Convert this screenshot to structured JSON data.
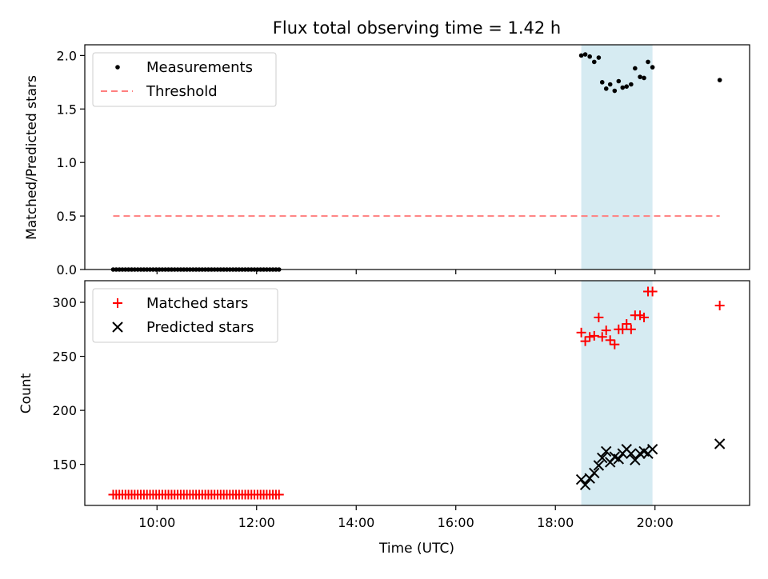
{
  "chart_data": {
    "title": "Flux total observing time = 1.42 h",
    "xlabel": "Time (UTC)",
    "x_unit": "hours UTC",
    "xlim": [
      8.55,
      21.9
    ],
    "xticks": [
      10,
      12,
      14,
      16,
      18,
      20
    ],
    "xtick_labels": [
      "10:00",
      "12:00",
      "14:00",
      "16:00",
      "18:00",
      "20:00"
    ],
    "highlight_span": {
      "x_start": 18.52,
      "x_end": 19.95,
      "color": "#ADD8E6"
    },
    "panels": [
      {
        "type": "scatter",
        "ylabel": "Matched/Predicted stars",
        "ylim": [
          0,
          2.1
        ],
        "yticks": [
          0.0,
          0.5,
          1.0,
          1.5,
          2.0
        ],
        "ytick_labels": [
          "0.0",
          "0.5",
          "1.0",
          "1.5",
          "2.0"
        ],
        "legend_position": "upper left",
        "series": [
          {
            "name": "Measurements",
            "marker": "dot",
            "color": "#000000",
            "x_range": [
              9.12,
              12.45
            ],
            "x_count": 55,
            "y_constant": 0.0,
            "points": [
              [
                18.52,
                2.0
              ],
              [
                18.6,
                2.01
              ],
              [
                18.69,
                1.99
              ],
              [
                18.78,
                1.94
              ],
              [
                18.87,
                1.98
              ],
              [
                18.94,
                1.75
              ],
              [
                19.02,
                1.69
              ],
              [
                19.1,
                1.73
              ],
              [
                19.19,
                1.67
              ],
              [
                19.27,
                1.76
              ],
              [
                19.35,
                1.7
              ],
              [
                19.43,
                1.71
              ],
              [
                19.52,
                1.73
              ],
              [
                19.6,
                1.88
              ],
              [
                19.7,
                1.8
              ],
              [
                19.78,
                1.79
              ],
              [
                19.86,
                1.94
              ],
              [
                19.95,
                1.89
              ],
              [
                21.3,
                1.77
              ]
            ]
          },
          {
            "name": "Threshold",
            "type": "line",
            "dash": "dashed",
            "color": "#FF7F7F",
            "x": [
              9.12,
              21.3
            ],
            "y": [
              0.5,
              0.5
            ]
          }
        ]
      },
      {
        "type": "scatter",
        "ylabel": "Count",
        "ylim": [
          112,
          320
        ],
        "yticks": [
          150,
          200,
          250,
          300
        ],
        "ytick_labels": [
          "150",
          "200",
          "250",
          "300"
        ],
        "legend_position": "upper left",
        "series": [
          {
            "name": "Matched stars",
            "marker": "plus",
            "color": "#FF0000",
            "x_range": [
              9.12,
              12.45
            ],
            "x_count": 55,
            "y_constant": 122,
            "points": [
              [
                18.52,
                272
              ],
              [
                18.6,
                264
              ],
              [
                18.69,
                268
              ],
              [
                18.78,
                269
              ],
              [
                18.87,
                286
              ],
              [
                18.94,
                268
              ],
              [
                19.02,
                274
              ],
              [
                19.1,
                265
              ],
              [
                19.19,
                261
              ],
              [
                19.27,
                275
              ],
              [
                19.35,
                275
              ],
              [
                19.43,
                280
              ],
              [
                19.52,
                275
              ],
              [
                19.6,
                288
              ],
              [
                19.7,
                288
              ],
              [
                19.78,
                286
              ],
              [
                19.86,
                310
              ],
              [
                19.95,
                310
              ],
              [
                21.3,
                297
              ]
            ]
          },
          {
            "name": "Predicted stars",
            "marker": "x",
            "color": "#000000",
            "points": [
              [
                18.52,
                136
              ],
              [
                18.6,
                131
              ],
              [
                18.69,
                137
              ],
              [
                18.78,
                142
              ],
              [
                18.87,
                149
              ],
              [
                18.94,
                156
              ],
              [
                19.02,
                162
              ],
              [
                19.1,
                152
              ],
              [
                19.19,
                157
              ],
              [
                19.27,
                155
              ],
              [
                19.35,
                160
              ],
              [
                19.43,
                164
              ],
              [
                19.52,
                160
              ],
              [
                19.6,
                154
              ],
              [
                19.7,
                160
              ],
              [
                19.78,
                162
              ],
              [
                19.86,
                160
              ],
              [
                19.95,
                164
              ],
              [
                21.3,
                169
              ]
            ]
          }
        ]
      }
    ]
  }
}
